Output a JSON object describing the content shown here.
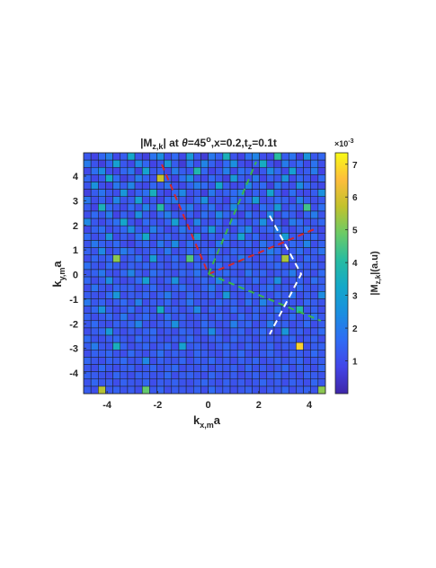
{
  "chart_data": {
    "type": "heatmap",
    "title": [
      "|M",
      "z,k",
      "| at ",
      "θ",
      "=45",
      "o",
      ",x=0.2,t",
      "z",
      "=0.1t"
    ],
    "xlabel": [
      "k",
      "x,m",
      "a"
    ],
    "ylabel": [
      "k",
      "y,m",
      "a"
    ],
    "colorbar_label": [
      "|M",
      "z,k",
      "|(a.u)"
    ],
    "colorbar_exponent": [
      "×10",
      "-3"
    ],
    "xlim": [
      -4.93,
      4.64
    ],
    "ylim": [
      -4.84,
      4.95
    ],
    "xticks": [
      -4,
      -2,
      0,
      2,
      4
    ],
    "yticks": [
      -4,
      -3,
      -2,
      -1,
      0,
      1,
      2,
      3,
      4
    ],
    "clim": [
      0,
      7.35
    ],
    "cticks": [
      1,
      2,
      3,
      4,
      5,
      6,
      7
    ],
    "colormap": [
      "#3e26a8",
      "#4245e8",
      "#2f6cf4",
      "#1b8ee0",
      "#13a8c9",
      "#28bca0",
      "#6ccb66",
      "#c2c22c",
      "#fdbd3c",
      "#f9fb15"
    ],
    "z": [
      [
        1.2,
        0.8,
        1.5,
        2.1,
        0.9,
        1.3,
        3.2,
        1.1,
        0.7,
        1.8,
        2.4,
        1.0,
        1.6,
        0.9,
        2.8,
        1.2,
        0.6,
        1.9,
        1.4,
        3.6,
        1.1,
        0.8,
        1.7,
        2.2,
        1.0,
        0.9,
        4.1,
        1.3,
        1.8,
        0.7,
        2.6,
        1.2,
        1.5
      ],
      [
        2.0,
        1.1,
        0.7,
        1.4,
        3.0,
        1.2,
        0.9,
        2.3,
        1.5,
        0.8,
        1.1,
        2.7,
        1.3,
        0.6,
        1.9,
        1.0,
        2.2,
        1.4,
        0.9,
        1.6,
        2.5,
        1.0,
        0.8,
        1.3,
        3.4,
        1.1,
        0.7,
        2.0,
        1.2,
        1.6,
        0.9,
        1.8,
        1.0
      ],
      [
        0.9,
        1.7,
        2.4,
        1.0,
        0.8,
        1.5,
        1.9,
        0.7,
        3.1,
        1.2,
        1.4,
        0.9,
        2.0,
        1.3,
        1.1,
        3.8,
        1.5,
        0.8,
        1.2,
        2.1,
        0.9,
        1.7,
        1.4,
        0.6,
        1.2,
        2.3,
        1.5,
        0.9,
        3.0,
        1.1,
        1.3,
        2.0,
        0.8
      ],
      [
        1.5,
        0.9,
        1.2,
        3.3,
        1.6,
        0.7,
        1.1,
        2.0,
        1.4,
        1.0,
        5.8,
        1.3,
        0.8,
        1.7,
        2.4,
        1.1,
        0.9,
        1.6,
        1.2,
        0.7,
        2.8,
        1.3,
        1.0,
        1.9,
        0.8,
        1.4,
        1.1,
        2.6,
        0.9,
        1.5,
        1.2,
        0.8,
        1.6
      ],
      [
        1.1,
        2.6,
        1.0,
        0.8,
        1.9,
        1.3,
        2.2,
        1.0,
        0.9,
        1.5,
        1.2,
        1.8,
        1.1,
        0.9,
        1.4,
        2.0,
        1.6,
        1.1,
        3.2,
        1.3,
        0.9,
        1.0,
        2.2,
        1.3,
        1.6,
        0.7,
        1.9,
        1.2,
        1.0,
        2.4,
        1.5,
        1.1,
        0.9
      ],
      [
        0.7,
        1.3,
        1.8,
        1.2,
        1.0,
        2.7,
        0.9,
        1.4,
        1.7,
        3.5,
        1.1,
        0.8,
        1.5,
        2.3,
        1.0,
        1.2,
        0.7,
        1.9,
        1.1,
        1.4,
        1.6,
        2.1,
        0.9,
        1.4,
        1.1,
        3.1,
        1.3,
        0.8,
        1.7,
        1.0,
        0.9,
        1.3,
        2.5
      ],
      [
        1.9,
        1.0,
        1.4,
        0.9,
        2.2,
        1.1,
        1.3,
        3.0,
        1.0,
        1.2,
        0.8,
        1.6,
        1.9,
        1.2,
        0.9,
        1.5,
        2.5,
        1.0,
        1.3,
        0.8,
        1.7,
        1.1,
        1.5,
        2.9,
        1.0,
        1.2,
        1.6,
        1.4,
        0.9,
        2.1,
        1.3,
        1.0,
        1.2
      ],
      [
        1.3,
        0.8,
        3.6,
        1.5,
        1.2,
        0.9,
        1.6,
        1.1,
        2.2,
        1.3,
        4.0,
        1.2,
        0.7,
        1.6,
        2.0,
        1.0,
        1.3,
        1.8,
        0.9,
        1.2,
        2.4,
        1.4,
        1.1,
        0.8,
        1.7,
        1.3,
        2.8,
        1.0,
        1.5,
        1.2,
        4.4,
        1.0,
        1.7
      ],
      [
        1.0,
        1.6,
        1.2,
        2.0,
        0.8,
        1.4,
        1.0,
        2.5,
        1.3,
        0.9,
        1.5,
        2.1,
        1.3,
        1.0,
        1.4,
        0.9,
        1.7,
        1.2,
        2.3,
        1.5,
        1.0,
        0.8,
        1.8,
        1.2,
        1.0,
        2.2,
        0.9,
        1.6,
        1.3,
        0.8,
        1.4,
        2.0,
        1.1
      ],
      [
        2.3,
        1.2,
        0.9,
        1.3,
        1.7,
        3.2,
        1.1,
        0.8,
        1.6,
        1.2,
        1.0,
        1.4,
        3.0,
        1.2,
        0.8,
        2.2,
        1.1,
        1.0,
        1.5,
        0.9,
        1.8,
        1.2,
        1.0,
        1.4,
        2.5,
        1.1,
        1.3,
        0.7,
        2.0,
        1.6,
        1.0,
        1.2,
        1.5
      ],
      [
        0.9,
        1.4,
        1.7,
        1.0,
        1.2,
        1.5,
        2.4,
        1.3,
        1.0,
        2.1,
        1.4,
        0.9,
        1.2,
        1.9,
        1.3,
        1.0,
        1.6,
        2.8,
        1.2,
        1.1,
        0.9,
        1.7,
        2.3,
        1.0,
        1.3,
        1.5,
        2.0,
        1.2,
        0.9,
        1.4,
        1.8,
        1.1,
        0.9
      ],
      [
        1.6,
        1.0,
        1.2,
        2.6,
        0.9,
        1.3,
        1.0,
        1.7,
        3.3,
        1.1,
        1.2,
        1.5,
        1.0,
        1.3,
        1.1,
        2.7,
        0.9,
        1.4,
        1.0,
        1.6,
        1.3,
        3.1,
        1.2,
        1.6,
        0.9,
        1.0,
        1.4,
        2.9,
        1.2,
        1.1,
        1.3,
        1.6,
        1.0
      ],
      [
        1.1,
        1.9,
        1.4,
        1.2,
        1.6,
        1.0,
        0.8,
        1.3,
        1.5,
        1.0,
        1.9,
        1.2,
        2.4,
        1.0,
        1.7,
        1.3,
        1.2,
        0.9,
        1.9,
        1.4,
        1.0,
        1.2,
        1.5,
        1.0,
        1.8,
        1.3,
        1.1,
        1.0,
        1.6,
        1.3,
        2.2,
        1.0,
        1.4
      ],
      [
        1.4,
        1.1,
        2.3,
        1.0,
        1.3,
        2.0,
        1.5,
        1.0,
        1.2,
        1.4,
        1.1,
        1.9,
        1.0,
        1.2,
        1.5,
        1.0,
        1.3,
        1.7,
        1.1,
        1.0,
        1.5,
        1.3,
        1.0,
        1.2,
        1.4,
        2.1,
        1.6,
        1.0,
        1.3,
        1.7,
        1.1,
        1.3,
        1.8
      ],
      [
        1.0,
        1.5,
        1.2,
        1.4,
        5.2,
        1.1,
        1.3,
        1.8,
        1.0,
        2.9,
        1.2,
        1.1,
        1.6,
        1.0,
        4.6,
        1.3,
        1.0,
        1.5,
        1.2,
        1.4,
        1.1,
        1.9,
        1.3,
        1.0,
        1.2,
        1.5,
        1.1,
        5.5,
        1.4,
        1.0,
        1.6,
        1.2,
        1.0
      ],
      [
        1.7,
        1.2,
        1.0,
        1.6,
        1.3,
        1.0,
        1.4,
        1.2,
        1.5,
        1.1,
        1.3,
        1.0,
        1.4,
        1.2,
        1.0,
        1.5,
        1.3,
        1.1,
        1.6,
        1.0,
        1.3,
        1.2,
        1.4,
        1.2,
        1.0,
        1.3,
        1.6,
        1.1,
        1.0,
        1.5,
        1.2,
        1.4,
        1.1
      ],
      [
        1.2,
        1.4,
        1.9,
        1.1,
        1.0,
        1.5,
        2.2,
        1.3,
        1.0,
        1.7,
        1.4,
        1.2,
        1.0,
        1.5,
        1.3,
        1.8,
        1.1,
        1.0,
        1.4,
        1.6,
        1.2,
        1.0,
        1.8,
        1.3,
        1.5,
        1.0,
        1.2,
        1.4,
        2.0,
        1.1,
        1.3,
        1.0,
        1.6
      ],
      [
        1.5,
        1.0,
        1.3,
        2.4,
        1.2,
        0.9,
        1.1,
        1.6,
        3.0,
        1.2,
        1.0,
        1.4,
        2.6,
        1.1,
        1.0,
        1.3,
        1.5,
        1.2,
        2.3,
        1.0,
        1.4,
        1.2,
        1.1,
        1.6,
        1.0,
        1.3,
        2.5,
        1.0,
        1.2,
        1.4,
        1.0,
        1.7,
        1.3
      ],
      [
        1.0,
        1.8,
        1.2,
        1.0,
        1.5,
        1.3,
        1.4,
        1.0,
        1.2,
        1.6,
        1.1,
        1.0,
        1.3,
        1.7,
        1.2,
        1.0,
        1.4,
        1.9,
        1.1,
        1.3,
        1.0,
        1.5,
        1.2,
        1.0,
        1.4,
        1.7,
        1.1,
        1.3,
        1.0,
        1.6,
        1.2,
        1.1,
        1.4
      ],
      [
        1.3,
        1.1,
        1.0,
        1.6,
        2.7,
        1.0,
        1.3,
        1.2,
        1.5,
        1.0,
        1.4,
        2.0,
        1.2,
        1.0,
        1.5,
        1.3,
        1.1,
        1.4,
        1.0,
        2.8,
        1.2,
        1.0,
        1.4,
        1.3,
        1.1,
        1.0,
        1.5,
        1.2,
        1.8,
        1.0,
        1.3,
        1.1,
        2.4
      ],
      [
        1.9,
        1.2,
        1.4,
        1.0,
        1.3,
        1.6,
        1.1,
        2.1,
        1.0,
        1.3,
        1.2,
        1.5,
        1.0,
        1.3,
        1.8,
        1.1,
        1.2,
        1.0,
        1.6,
        1.3,
        1.4,
        1.0,
        1.7,
        1.1,
        2.2,
        1.3,
        1.0,
        1.4,
        1.2,
        1.0,
        1.5,
        1.3,
        1.1
      ],
      [
        1.1,
        1.5,
        2.6,
        1.3,
        1.0,
        1.2,
        1.7,
        1.0,
        1.4,
        1.1,
        3.4,
        1.2,
        1.4,
        1.0,
        1.3,
        2.3,
        1.0,
        1.5,
        1.2,
        1.1,
        1.6,
        1.2,
        1.0,
        1.4,
        1.3,
        1.1,
        1.8,
        1.0,
        1.2,
        3.9,
        1.1,
        1.4,
        1.0
      ],
      [
        1.4,
        1.0,
        1.2,
        1.5,
        1.1,
        1.9,
        1.0,
        1.3,
        1.6,
        1.2,
        1.0,
        1.7,
        1.1,
        1.4,
        1.0,
        1.2,
        1.3,
        1.0,
        1.5,
        1.2,
        1.0,
        1.6,
        1.2,
        1.5,
        1.0,
        1.4,
        1.2,
        1.1,
        1.6,
        1.0,
        1.3,
        1.8,
        1.2
      ],
      [
        1.2,
        1.6,
        1.1,
        1.0,
        1.4,
        1.2,
        1.5,
        2.2,
        1.1,
        1.0,
        1.3,
        1.4,
        2.5,
        1.2,
        1.1,
        1.0,
        1.6,
        1.3,
        1.0,
        1.2,
        2.1,
        1.3,
        1.5,
        1.0,
        1.2,
        2.0,
        1.3,
        1.4,
        1.0,
        1.2,
        1.6,
        1.0,
        1.3
      ],
      [
        1.0,
        1.3,
        1.5,
        2.8,
        1.2,
        1.0,
        1.3,
        1.1,
        1.4,
        1.6,
        1.0,
        1.2,
        1.0,
        1.5,
        1.3,
        1.0,
        1.4,
        2.4,
        1.2,
        1.0,
        1.3,
        1.5,
        1.0,
        1.3,
        1.6,
        1.1,
        1.0,
        2.7,
        1.2,
        1.4,
        1.0,
        1.2,
        1.6
      ],
      [
        1.6,
        1.1,
        1.0,
        1.3,
        1.5,
        1.2,
        1.0,
        1.6,
        1.2,
        1.4,
        1.1,
        1.0,
        1.3,
        1.2,
        1.6,
        1.1,
        1.0,
        1.3,
        1.4,
        1.0,
        1.5,
        1.2,
        1.3,
        1.0,
        1.4,
        1.2,
        1.1,
        1.3,
        1.5,
        1.0,
        1.2,
        1.4,
        1.0
      ],
      [
        1.3,
        2.0,
        1.2,
        1.1,
        3.5,
        1.4,
        1.0,
        1.2,
        1.5,
        1.0,
        1.3,
        1.6,
        1.0,
        3.0,
        1.2,
        1.4,
        1.1,
        1.0,
        1.3,
        1.5,
        1.2,
        1.0,
        1.4,
        1.2,
        1.1,
        1.5,
        1.0,
        1.3,
        1.2,
        6.8,
        1.0,
        1.3,
        1.4
      ],
      [
        1.0,
        1.4,
        1.3,
        1.5,
        1.1,
        1.0,
        1.6,
        1.2,
        1.0,
        1.3,
        1.7,
        1.1,
        1.4,
        1.2,
        1.0,
        1.5,
        1.3,
        1.1,
        1.0,
        1.4,
        1.2,
        1.6,
        1.1,
        1.0,
        1.3,
        1.5,
        1.2,
        1.0,
        1.4,
        1.3,
        1.1,
        1.6,
        1.2
      ],
      [
        1.5,
        1.2,
        1.0,
        1.4,
        1.3,
        1.6,
        1.1,
        1.2,
        2.3,
        1.0,
        1.4,
        1.2,
        1.1,
        1.5,
        1.0,
        1.4,
        1.2,
        1.6,
        1.1,
        1.3,
        1.0,
        1.4,
        1.2,
        1.5,
        1.0,
        1.2,
        1.4,
        1.1,
        1.3,
        1.5,
        1.0,
        1.2,
        1.3
      ],
      [
        1.2,
        1.0,
        1.6,
        1.2,
        1.0,
        1.3,
        1.4,
        1.0,
        1.2,
        1.5,
        1.1,
        1.3,
        1.6,
        1.0,
        1.2,
        1.1,
        1.4,
        1.0,
        1.3,
        1.2,
        1.4,
        1.0,
        1.5,
        1.1,
        1.3,
        1.0,
        1.2,
        1.6,
        1.0,
        1.4,
        1.2,
        1.0,
        1.5
      ],
      [
        1.4,
        1.3,
        1.1,
        1.0,
        1.5,
        1.2,
        1.0,
        1.4,
        1.3,
        1.1,
        1.2,
        1.6,
        1.0,
        1.3,
        1.4,
        1.2,
        1.0,
        1.5,
        1.2,
        1.1,
        1.3,
        1.0,
        1.2,
        1.4,
        1.0,
        1.3,
        1.5,
        1.1,
        1.2,
        1.0,
        1.4,
        1.3,
        1.1
      ],
      [
        1.1,
        1.5,
        1.2,
        1.3,
        1.0,
        1.4,
        1.2,
        1.1,
        1.5,
        1.0,
        1.3,
        1.2,
        1.4,
        1.1,
        1.0,
        1.3,
        1.5,
        1.2,
        1.0,
        1.4,
        1.1,
        1.3,
        1.0,
        1.2,
        1.5,
        1.1,
        1.3,
        1.0,
        1.4,
        1.2,
        1.0,
        1.5,
        1.2
      ],
      [
        1.3,
        1.0,
        5.6,
        1.2,
        1.4,
        1.1,
        1.3,
        1.0,
        4.8,
        1.2,
        1.5,
        1.0,
        1.3,
        1.2,
        1.1,
        1.4,
        1.0,
        1.6,
        1.2,
        1.3,
        1.0,
        1.2,
        1.4,
        1.1,
        1.0,
        1.3,
        1.2,
        1.5,
        1.0,
        1.3,
        1.4,
        1.1,
        5.2
      ]
    ]
  }
}
